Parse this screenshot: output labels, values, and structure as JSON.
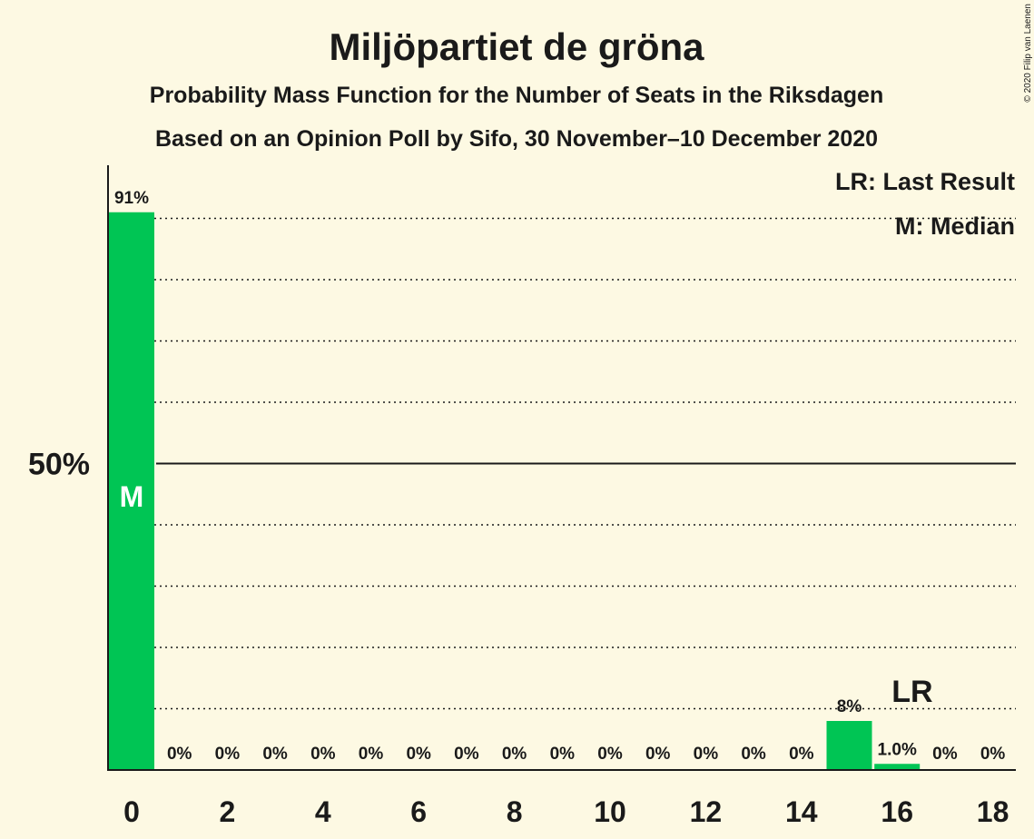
{
  "colors": {
    "background": "#fdf9e3",
    "bar": "#00c554",
    "text": "#1a1a1a"
  },
  "header": {
    "title": "Miljöpartiet de gröna",
    "subtitle1": "Probability Mass Function for the Number of Seats in the Riksdagen",
    "subtitle2": "Based on an Opinion Poll by Sifo, 30 November–10 December 2020",
    "copyright": "© 2020 Filip van Laenen"
  },
  "legend": {
    "last_result": "LR: Last Result",
    "median": "M: Median"
  },
  "chart_data": {
    "type": "bar",
    "title": "Miljöpartiet de gröna",
    "xlabel": "",
    "ylabel": "",
    "categories": [
      0,
      1,
      2,
      3,
      4,
      5,
      6,
      7,
      8,
      9,
      10,
      11,
      12,
      13,
      14,
      15,
      16,
      17,
      18
    ],
    "values": [
      91,
      0,
      0,
      0,
      0,
      0,
      0,
      0,
      0,
      0,
      0,
      0,
      0,
      0,
      0,
      8,
      1.0,
      0,
      0
    ],
    "value_labels": [
      "91%",
      "0%",
      "0%",
      "0%",
      "0%",
      "0%",
      "0%",
      "0%",
      "0%",
      "0%",
      "0%",
      "0%",
      "0%",
      "0%",
      "0%",
      "8%",
      "1.0%",
      "0%",
      "0%"
    ],
    "x_tick_labels": [
      "0",
      "2",
      "4",
      "6",
      "8",
      "10",
      "12",
      "14",
      "16",
      "18"
    ],
    "y_tick_labels": [
      "50%"
    ],
    "ylim": [
      0,
      100
    ],
    "gridlines_percent": [
      10,
      20,
      30,
      40,
      60,
      70,
      80,
      90
    ],
    "solid_line_percent": 50,
    "markers": [
      {
        "seats": 0,
        "label": "M"
      },
      {
        "seats": 16,
        "label": "LR"
      }
    ],
    "legend_position": "top-right",
    "grid": true
  }
}
